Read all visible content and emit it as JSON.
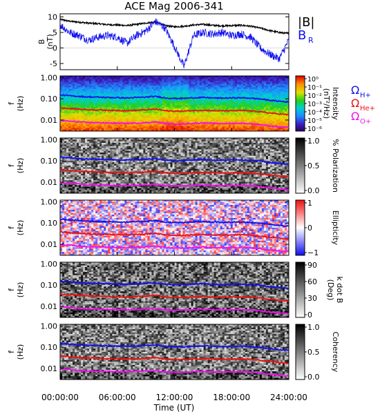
{
  "title": "ACE Mag 2006-341",
  "colors": {
    "blue": "#1010ee",
    "red": "#ee1010",
    "magenta": "#ee10ee",
    "black": "#000000"
  },
  "chart_data": [
    {
      "type": "line",
      "panel": "B",
      "ylabel": "B",
      "ylabel_units": "(nT)",
      "ylim": [
        -7,
        11
      ],
      "yticks": [
        10,
        5,
        0,
        -5
      ],
      "x_hours": [
        0,
        1,
        2,
        3,
        4,
        5,
        6,
        7,
        8,
        9,
        10,
        11,
        12,
        13,
        14,
        15,
        16,
        17,
        18,
        19,
        20,
        21,
        22,
        23,
        24
      ],
      "series": [
        {
          "name": "|B|",
          "color": "#000000",
          "values": [
            9.2,
            8.6,
            8.3,
            8.0,
            7.8,
            7.5,
            7.4,
            7.2,
            7.6,
            8.0,
            8.4,
            7.2,
            6.8,
            7.0,
            7.4,
            7.6,
            7.3,
            7.1,
            7.2,
            7.3,
            7.0,
            6.4,
            5.6,
            5.0,
            4.6
          ]
        },
        {
          "name": "B_R",
          "label_main": "B",
          "label_sub": "R",
          "color": "#1010ee",
          "values": [
            7.5,
            5.0,
            4.0,
            2.5,
            3.5,
            4.0,
            3.5,
            1.5,
            4.0,
            5.5,
            8.5,
            6.5,
            0.5,
            -6.0,
            4.0,
            5.0,
            4.5,
            5.0,
            4.0,
            4.5,
            3.5,
            0.0,
            -2.0,
            -3.5,
            2.5
          ]
        }
      ]
    },
    {
      "type": "heatmap",
      "panel": "intensity",
      "ylabel": "f",
      "ylabel_units": "(Hz)",
      "yscale": "log",
      "ylim": [
        0.003,
        1.2
      ],
      "yticks": [
        "1.00",
        "0.10",
        "0.01"
      ],
      "colorbar": {
        "label": "Intensity",
        "units": "(nT²/Hz)",
        "scale": "log",
        "tick_labels": [
          "10⁰",
          "10⁻¹",
          "10⁻²",
          "10⁻³",
          "10⁻⁴",
          "10⁻⁵",
          "10⁻⁶"
        ]
      },
      "legend": [
        {
          "label_main": "Ω",
          "label_sub": "H+",
          "color": "#1010ee"
        },
        {
          "label_main": "Ω",
          "label_sub": "He+",
          "color": "#ee1010"
        },
        {
          "label_main": "Ω",
          "label_sub": "O+",
          "color": "#ee10ee"
        }
      ]
    },
    {
      "type": "heatmap",
      "panel": "polarization",
      "ylabel": "f",
      "ylabel_units": "(Hz)",
      "yscale": "log",
      "yticks": [
        "1.00",
        "0.10",
        "0.01"
      ],
      "colorbar": {
        "label": "% Polarization",
        "scale": "linear",
        "tick_labels": [
          "1.0",
          "0.5",
          "0.0"
        ]
      }
    },
    {
      "type": "heatmap",
      "panel": "ellipticity",
      "ylabel": "f",
      "ylabel_units": "(Hz)",
      "yscale": "log",
      "yticks": [
        "1.00",
        "0.10",
        "0.01"
      ],
      "colorbar": {
        "label": "Ellipticity",
        "scale": "linear",
        "tick_labels": [
          "1",
          "0",
          "−1"
        ]
      }
    },
    {
      "type": "heatmap",
      "panel": "kdotb",
      "ylabel": "f",
      "ylabel_units": "(Hz)",
      "yscale": "log",
      "yticks": [
        "1.00",
        "0.10",
        "0.01"
      ],
      "colorbar": {
        "label": "k dot B",
        "units": "(Deg)",
        "scale": "linear",
        "tick_labels": [
          "90",
          "60",
          "30",
          "0"
        ]
      }
    },
    {
      "type": "heatmap",
      "panel": "coherency",
      "ylabel": "f",
      "ylabel_units": "(Hz)",
      "yscale": "log",
      "yticks": [
        "1.00",
        "0.10",
        "0.01"
      ],
      "colorbar": {
        "label": "Coherency",
        "scale": "linear",
        "tick_labels": [
          "1.0",
          "0.5",
          "0.0"
        ]
      }
    }
  ],
  "gyro_lines": {
    "x_hours": [
      0,
      1,
      2,
      3,
      4,
      5,
      6,
      7,
      8,
      9,
      10,
      11,
      12,
      13,
      14,
      15,
      16,
      17,
      18,
      19,
      20,
      21,
      22,
      23,
      24
    ],
    "H+": [
      0.15,
      0.14,
      0.13,
      0.122,
      0.12,
      0.115,
      0.113,
      0.11,
      0.115,
      0.12,
      0.13,
      0.11,
      0.104,
      0.105,
      0.112,
      0.116,
      0.11,
      0.108,
      0.11,
      0.112,
      0.107,
      0.098,
      0.085,
      0.077,
      0.07
    ],
    "He+": [
      0.0375,
      0.035,
      0.0325,
      0.0305,
      0.03,
      0.0288,
      0.0283,
      0.0275,
      0.0288,
      0.03,
      0.0325,
      0.0275,
      0.026,
      0.0263,
      0.028,
      0.029,
      0.0275,
      0.027,
      0.0275,
      0.028,
      0.0268,
      0.0245,
      0.0213,
      0.0193,
      0.0175
    ],
    "O+": [
      0.0094,
      0.0088,
      0.0081,
      0.0076,
      0.0075,
      0.0072,
      0.0071,
      0.0069,
      0.0072,
      0.0075,
      0.0081,
      0.0069,
      0.0065,
      0.0066,
      0.007,
      0.0073,
      0.0069,
      0.0068,
      0.0069,
      0.007,
      0.0067,
      0.0061,
      0.0053,
      0.0048,
      0.0044
    ]
  },
  "xaxis": {
    "label": "Time (UT)",
    "tick_hours": [
      0,
      6,
      12,
      18,
      24
    ],
    "tick_labels": [
      "00:00:00",
      "06:00:00",
      "12:00:00",
      "18:00:00",
      "24:00:00"
    ]
  }
}
